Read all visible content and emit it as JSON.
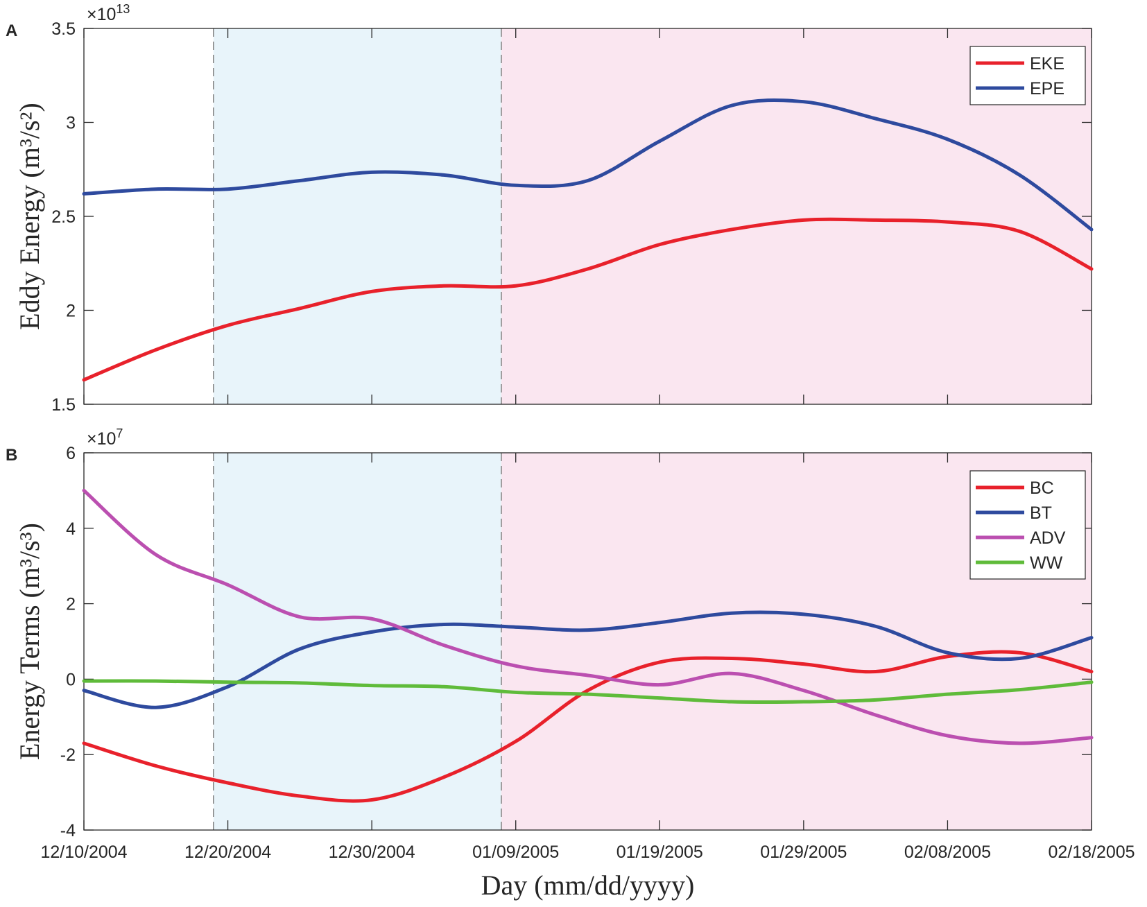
{
  "xlabel": "Day (mm/dd/yyyy)",
  "x_tick_labels": [
    "12/10/2004",
    "12/20/2004",
    "12/30/2004",
    "01/09/2005",
    "01/19/2005",
    "01/29/2005",
    "02/08/2005",
    "02/18/2005"
  ],
  "colors": {
    "red": "#e8212b",
    "blue": "#2e4a9e",
    "magenta": "#bb4fb0",
    "green": "#5fbb3a",
    "shade_blue": "#e8f4fa",
    "shade_pink": "#fae6f0",
    "dashed": "#888888"
  },
  "chart_data": [
    {
      "type": "line",
      "panel_label": "A",
      "ylabel": "Eddy Energy (m³/s²)",
      "exponent": "13",
      "xlim": [
        "12/10/2004",
        "02/18/2005"
      ],
      "ylim": [
        1.5,
        3.5
      ],
      "yticks": [
        "1.5",
        "2",
        "2.5",
        "3",
        "3.5"
      ],
      "shaded_periods": [
        {
          "from": "12/19/2004",
          "to": "01/08/2005",
          "color": "light-blue"
        },
        {
          "from": "01/08/2005",
          "to": "02/18/2005",
          "color": "light-pink"
        }
      ],
      "vertical_dashed_lines": [
        "12/19/2004",
        "01/08/2005"
      ],
      "legend": {
        "position": "top-right",
        "entries": [
          "EKE",
          "EPE"
        ]
      },
      "series": [
        {
          "name": "EKE",
          "color": "#e8212b",
          "x": [
            "12/10/2004",
            "12/15/2004",
            "12/20/2004",
            "12/25/2004",
            "12/30/2004",
            "01/04/2005",
            "01/09/2005",
            "01/14/2005",
            "01/19/2005",
            "01/24/2005",
            "01/29/2005",
            "02/03/2005",
            "02/08/2005",
            "02/13/2005",
            "02/18/2005"
          ],
          "y": [
            1.63,
            1.79,
            1.92,
            2.01,
            2.1,
            2.13,
            2.13,
            2.22,
            2.35,
            2.43,
            2.48,
            2.48,
            2.47,
            2.42,
            2.22
          ]
        },
        {
          "name": "EPE",
          "color": "#2e4a9e",
          "x": [
            "12/10/2004",
            "12/15/2004",
            "12/20/2004",
            "12/25/2004",
            "12/30/2004",
            "01/04/2005",
            "01/09/2005",
            "01/14/2005",
            "01/19/2005",
            "01/24/2005",
            "01/29/2005",
            "02/03/2005",
            "02/08/2005",
            "02/13/2005",
            "02/18/2005"
          ],
          "y": [
            2.62,
            2.645,
            2.645,
            2.69,
            2.735,
            2.72,
            2.665,
            2.69,
            2.9,
            3.09,
            3.11,
            3.02,
            2.91,
            2.72,
            2.43
          ]
        }
      ]
    },
    {
      "type": "line",
      "panel_label": "B",
      "ylabel": "Energy Terms (m³/s³)",
      "exponent": "7",
      "xlim": [
        "12/10/2004",
        "02/18/2005"
      ],
      "ylim": [
        -4,
        6
      ],
      "yticks": [
        "-4",
        "-2",
        "0",
        "2",
        "4",
        "6"
      ],
      "shaded_periods": [
        {
          "from": "12/19/2004",
          "to": "01/08/2005",
          "color": "light-blue"
        },
        {
          "from": "01/08/2005",
          "to": "02/18/2005",
          "color": "light-pink"
        }
      ],
      "vertical_dashed_lines": [
        "12/19/2004",
        "01/08/2005"
      ],
      "legend": {
        "position": "top-right",
        "entries": [
          "BC",
          "BT",
          "ADV",
          "WW"
        ]
      },
      "series": [
        {
          "name": "BC",
          "color": "#e8212b",
          "x": [
            "12/10/2004",
            "12/15/2004",
            "12/20/2004",
            "12/25/2004",
            "12/30/2004",
            "01/04/2005",
            "01/09/2005",
            "01/14/2005",
            "01/19/2005",
            "01/24/2005",
            "01/29/2005",
            "02/03/2005",
            "02/08/2005",
            "02/13/2005",
            "02/18/2005"
          ],
          "y": [
            -1.7,
            -2.3,
            -2.75,
            -3.1,
            -3.2,
            -2.6,
            -1.65,
            -0.3,
            0.45,
            0.55,
            0.4,
            0.2,
            0.6,
            0.7,
            0.2
          ]
        },
        {
          "name": "BT",
          "color": "#2e4a9e",
          "x": [
            "12/10/2004",
            "12/15/2004",
            "12/20/2004",
            "12/25/2004",
            "12/30/2004",
            "01/04/2005",
            "01/09/2005",
            "01/14/2005",
            "01/19/2005",
            "01/24/2005",
            "01/29/2005",
            "02/03/2005",
            "02/08/2005",
            "02/13/2005",
            "02/18/2005"
          ],
          "y": [
            -0.3,
            -0.75,
            -0.2,
            0.8,
            1.25,
            1.45,
            1.38,
            1.3,
            1.5,
            1.75,
            1.72,
            1.4,
            0.7,
            0.55,
            1.1
          ]
        },
        {
          "name": "ADV",
          "color": "#bb4fb0",
          "x": [
            "12/10/2004",
            "12/15/2004",
            "12/20/2004",
            "12/25/2004",
            "12/30/2004",
            "01/04/2005",
            "01/09/2005",
            "01/14/2005",
            "01/19/2005",
            "01/24/2005",
            "01/29/2005",
            "02/03/2005",
            "02/08/2005",
            "02/13/2005",
            "02/18/2005"
          ],
          "y": [
            5.0,
            3.3,
            2.5,
            1.65,
            1.6,
            0.9,
            0.35,
            0.1,
            -0.15,
            0.15,
            -0.3,
            -0.95,
            -1.5,
            -1.7,
            -1.55
          ]
        },
        {
          "name": "WW",
          "color": "#5fbb3a",
          "x": [
            "12/10/2004",
            "12/15/2004",
            "12/20/2004",
            "12/25/2004",
            "12/30/2004",
            "01/04/2005",
            "01/09/2005",
            "01/14/2005",
            "01/19/2005",
            "01/24/2005",
            "01/29/2005",
            "02/03/2005",
            "02/08/2005",
            "02/13/2005",
            "02/18/2005"
          ],
          "y": [
            -0.05,
            -0.05,
            -0.08,
            -0.1,
            -0.17,
            -0.2,
            -0.35,
            -0.4,
            -0.5,
            -0.6,
            -0.6,
            -0.55,
            -0.4,
            -0.28,
            -0.08
          ]
        }
      ]
    }
  ]
}
